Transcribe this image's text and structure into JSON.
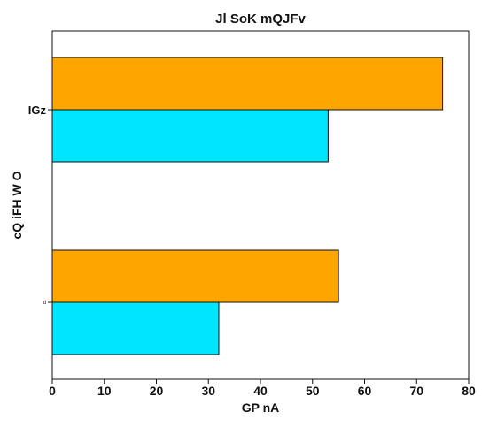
{
  "chart_data": {
    "type": "bar",
    "orientation": "horizontal",
    "title": "Jl SoK mQJFv",
    "xlabel": "GP nA",
    "ylabel": "cQ iFH W O",
    "categories": [
      "IGz",
      "d"
    ],
    "series": [
      {
        "values": [
          75,
          55
        ],
        "color": "#ffa500"
      },
      {
        "values": [
          53,
          32
        ],
        "color": "#00e5ff"
      }
    ],
    "xlim": [
      0,
      80
    ],
    "xticks": [
      "0",
      "10",
      "20",
      "30",
      "40",
      "50",
      "60",
      "70",
      "80"
    ],
    "grid": false
  }
}
